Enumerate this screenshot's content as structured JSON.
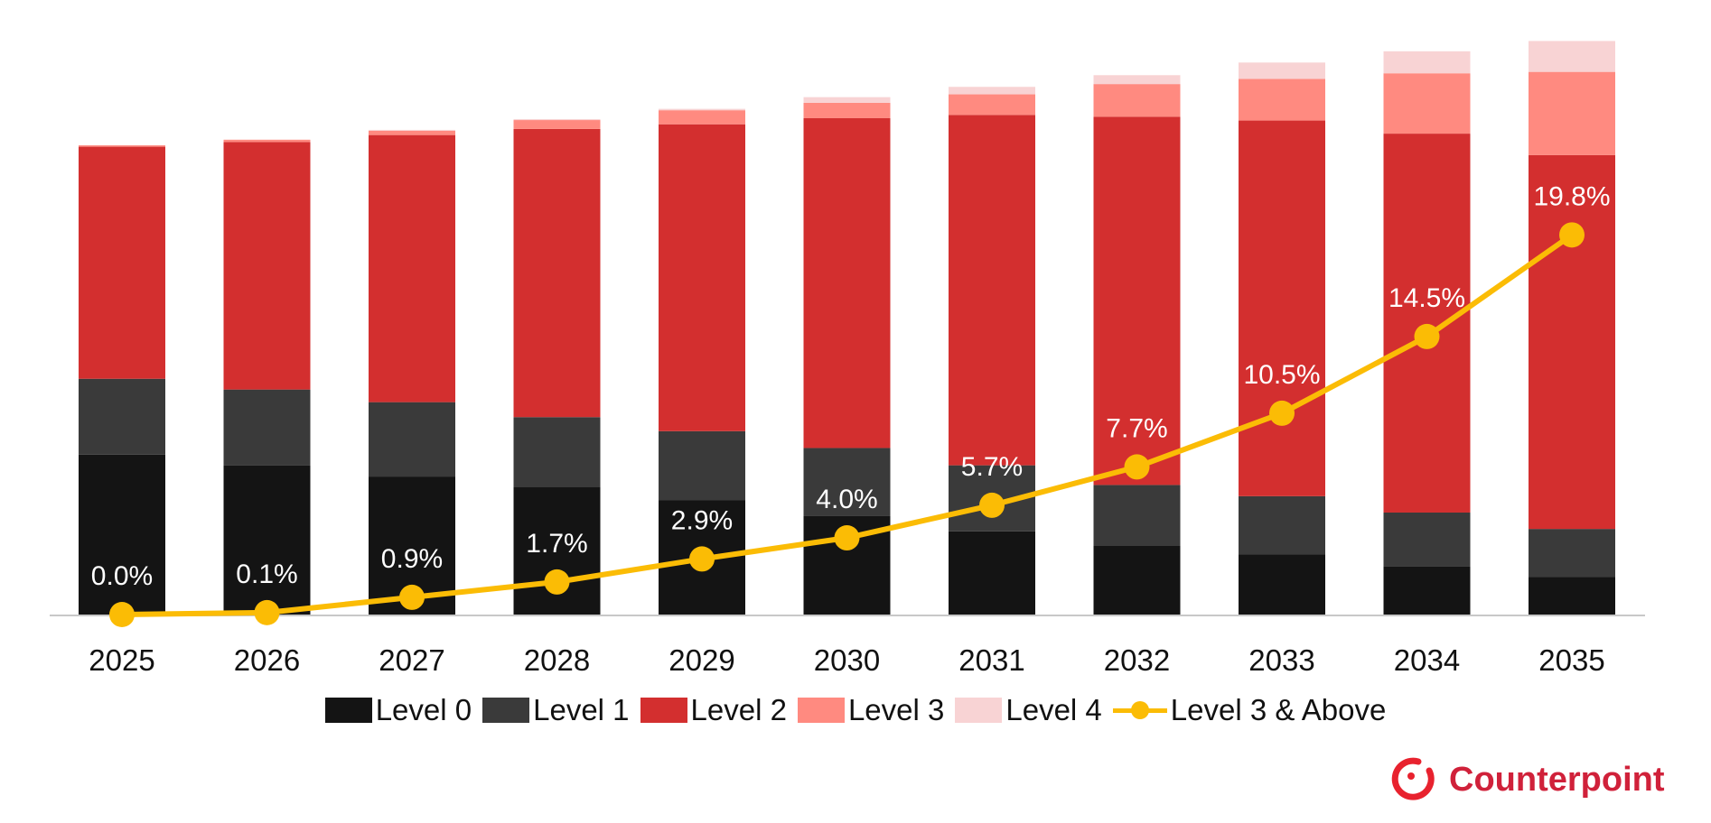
{
  "chart_data": {
    "type": "bar",
    "stacked": true,
    "categories": [
      "2025",
      "2026",
      "2027",
      "2028",
      "2029",
      "2030",
      "2031",
      "2032",
      "2033",
      "2034",
      "2035"
    ],
    "series": [
      {
        "name": "Level 0",
        "color": "#141414",
        "values": [
          34.2,
          31.9,
          29.5,
          27.2,
          24.4,
          21.1,
          17.8,
          14.8,
          12.9,
          10.3,
          8.0
        ]
      },
      {
        "name": "Level 1",
        "color": "#3a3a3a",
        "values": [
          16.2,
          16.2,
          15.9,
          15.0,
          14.8,
          14.5,
          14.1,
          12.9,
          12.4,
          11.5,
          10.3
        ]
      },
      {
        "name": "Level 2",
        "color": "#d32f2f",
        "values": [
          49.6,
          52.9,
          57.1,
          61.6,
          65.6,
          70.5,
          74.9,
          78.7,
          80.3,
          81.0,
          79.9
        ]
      },
      {
        "name": "Level 3",
        "color": "#ff8a80",
        "values": [
          0.3,
          0.5,
          0.9,
          1.9,
          3.0,
          3.3,
          4.4,
          7.0,
          8.9,
          12.9,
          17.8
        ]
      },
      {
        "name": "Level 4",
        "color": "#f8d3d4",
        "values": [
          0,
          0,
          0.2,
          0.2,
          0.3,
          1.2,
          1.6,
          1.9,
          3.5,
          4.7,
          6.6
        ]
      }
    ],
    "line_series": {
      "name": "Level 3 & Above",
      "color": "#fbbc05",
      "axis": "secondary",
      "values": [
        0.0,
        0.1,
        0.9,
        1.7,
        2.9,
        4.0,
        5.7,
        7.7,
        10.5,
        14.5,
        19.8
      ],
      "labels": [
        "0.0%",
        "0.1%",
        "0.9%",
        "1.7%",
        "2.9%",
        "4.0%",
        "5.7%",
        "7.7%",
        "10.5%",
        "14.5%",
        "19.8%"
      ]
    },
    "ylim": [
      0,
      125
    ],
    "y2lim": [
      0,
      30.5
    ],
    "grid": false,
    "legend_position": "bottom",
    "title": "",
    "xlabel": "",
    "ylabel": ""
  },
  "legend": [
    "Level 0",
    "Level 1",
    "Level 2",
    "Level 3",
    "Level 4",
    "Level 3 & Above"
  ],
  "logo": {
    "text": "Counterpoint",
    "color": "#d0213a"
  }
}
